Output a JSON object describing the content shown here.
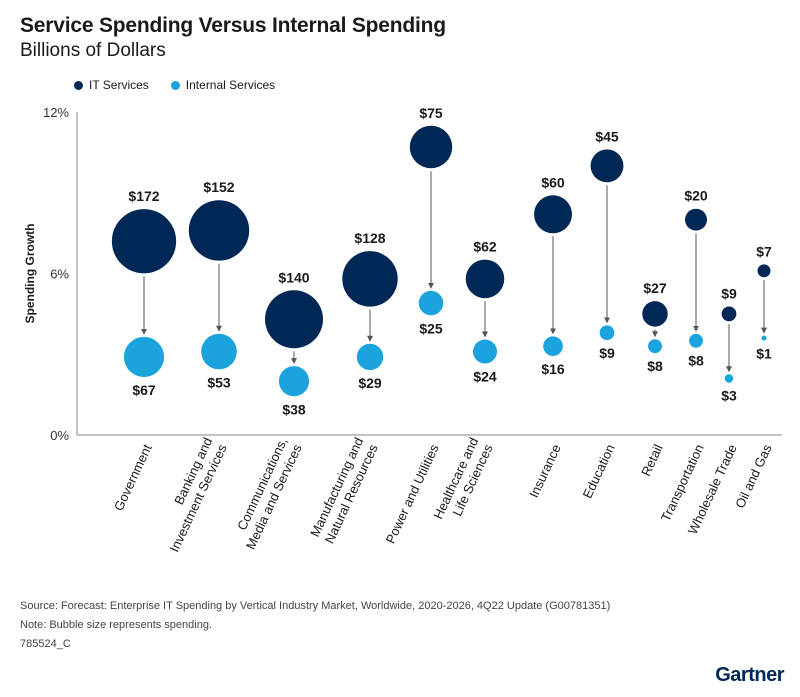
{
  "header": {
    "title": "Service Spending Versus Internal Spending",
    "subtitle": "Billions of Dollars"
  },
  "footer": {
    "source": "Source: Forecast: Enterprise IT Spending by Vertical Industry Market, Worldwide, 2020-2026, 4Q22 Update (G00781351)",
    "note": "Note: Bubble size represents spending.",
    "code": "785524_C",
    "brand": "Gartner"
  },
  "colors": {
    "it": "#002856",
    "internal": "#1AA3DC",
    "axis": "#888888",
    "arrow": "#555555"
  },
  "chart_data": {
    "type": "scatter",
    "title": "Service Spending Versus Internal Spending",
    "subtitle": "Billions of Dollars",
    "ylabel": "Spending Growth",
    "xlabel": "",
    "ylim": [
      0,
      12
    ],
    "yticks": [
      "0%",
      "6%",
      "12%"
    ],
    "ytick_values": [
      0,
      6,
      12
    ],
    "legend": [
      "IT Services",
      "Internal Services"
    ],
    "legend_position": "top-left",
    "categories": [
      {
        "label": [
          "Government"
        ],
        "it_growth": 7.2,
        "it_value": 172,
        "it_label": "$172",
        "int_growth": 2.9,
        "int_value": 67,
        "int_label": "$67"
      },
      {
        "label": [
          "Banking and",
          "Investment Services"
        ],
        "it_growth": 7.6,
        "it_value": 152,
        "it_label": "$152",
        "int_growth": 3.1,
        "int_value": 53,
        "int_label": "$53"
      },
      {
        "label": [
          "Communications,",
          "Media and Services"
        ],
        "it_growth": 4.3,
        "it_value": 140,
        "it_label": "$140",
        "int_growth": 2.0,
        "int_value": 38,
        "int_label": "$38"
      },
      {
        "label": [
          "Manufacturing and",
          "Natural Resources"
        ],
        "it_growth": 5.8,
        "it_value": 128,
        "it_label": "$128",
        "int_growth": 2.9,
        "int_value": 29,
        "int_label": "$29"
      },
      {
        "label": [
          "Power and Utilities"
        ],
        "it_growth": 10.7,
        "it_value": 75,
        "it_label": "$75",
        "int_growth": 4.9,
        "int_value": 25,
        "int_label": "$25"
      },
      {
        "label": [
          "Healthcare and",
          "Life Sciences"
        ],
        "it_growth": 5.8,
        "it_value": 62,
        "it_label": "$62",
        "int_growth": 3.1,
        "int_value": 24,
        "int_label": "$24"
      },
      {
        "label": [
          "Insurance"
        ],
        "it_growth": 8.2,
        "it_value": 60,
        "it_label": "$60",
        "int_growth": 3.3,
        "int_value": 16,
        "int_label": "$16"
      },
      {
        "label": [
          "Education"
        ],
        "it_growth": 10.0,
        "it_value": 45,
        "it_label": "$45",
        "int_growth": 3.8,
        "int_value": 9,
        "int_label": "$9"
      },
      {
        "label": [
          "Retail"
        ],
        "it_growth": 4.5,
        "it_value": 27,
        "it_label": "$27",
        "int_growth": 3.3,
        "int_value": 8,
        "int_label": "$8"
      },
      {
        "label": [
          "Transportation"
        ],
        "it_growth": 8.0,
        "it_value": 20,
        "it_label": "$20",
        "int_growth": 3.5,
        "int_value": 8,
        "int_label": "$8"
      },
      {
        "label": [
          "Wholesale Trade"
        ],
        "it_growth": 4.5,
        "it_value": 9,
        "it_label": "$9",
        "int_growth": 2.1,
        "int_value": 3,
        "int_label": "$3"
      },
      {
        "label": [
          "Oil and Gas"
        ],
        "it_growth": 6.1,
        "it_value": 7,
        "it_label": "$7",
        "int_growth": 3.6,
        "int_value": 1,
        "int_label": "$1"
      }
    ]
  }
}
